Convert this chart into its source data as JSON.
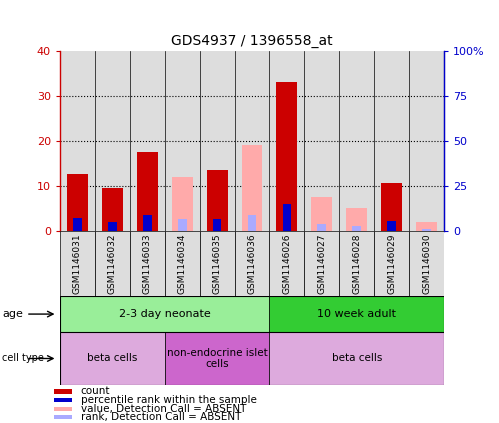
{
  "title": "GDS4937 / 1396558_at",
  "samples": [
    "GSM1146031",
    "GSM1146032",
    "GSM1146033",
    "GSM1146034",
    "GSM1146035",
    "GSM1146036",
    "GSM1146026",
    "GSM1146027",
    "GSM1146028",
    "GSM1146029",
    "GSM1146030"
  ],
  "count_values": [
    12.5,
    9.5,
    17.5,
    0,
    13.5,
    0,
    33.0,
    0,
    0,
    10.5,
    0
  ],
  "rank_values": [
    7.0,
    4.5,
    8.5,
    0,
    6.5,
    0,
    15.0,
    0,
    0,
    5.5,
    0
  ],
  "absent_value_values": [
    0,
    0,
    0,
    12.0,
    0,
    19.0,
    0,
    7.5,
    5.0,
    0,
    2.0
  ],
  "absent_rank_values": [
    0,
    0,
    0,
    6.5,
    0,
    8.5,
    0,
    3.5,
    2.5,
    0,
    0.8
  ],
  "count_color": "#cc0000",
  "rank_color": "#0000cc",
  "absent_value_color": "#ffaaaa",
  "absent_rank_color": "#aaaaff",
  "ylim_left": [
    0,
    40
  ],
  "ylim_right": [
    0,
    100
  ],
  "yticks_left": [
    0,
    10,
    20,
    30,
    40
  ],
  "yticks_right": [
    0,
    25,
    50,
    75,
    100
  ],
  "ytick_labels_left": [
    "0",
    "10",
    "20",
    "30",
    "40"
  ],
  "ytick_labels_right": [
    "0",
    "25",
    "50",
    "75",
    "100%"
  ],
  "age_groups": [
    {
      "label": "2-3 day neonate",
      "start": 0,
      "end": 6,
      "color": "#99ee99"
    },
    {
      "label": "10 week adult",
      "start": 6,
      "end": 11,
      "color": "#33cc33"
    }
  ],
  "cell_type_groups": [
    {
      "label": "beta cells",
      "start": 0,
      "end": 3,
      "color": "#ddaadd"
    },
    {
      "label": "non-endocrine islet\ncells",
      "start": 3,
      "end": 6,
      "color": "#cc66cc"
    },
    {
      "label": "beta cells",
      "start": 6,
      "end": 11,
      "color": "#ddaadd"
    }
  ],
  "legend_items": [
    {
      "label": "count",
      "color": "#cc0000"
    },
    {
      "label": "percentile rank within the sample",
      "color": "#0000cc"
    },
    {
      "label": "value, Detection Call = ABSENT",
      "color": "#ffaaaa"
    },
    {
      "label": "rank, Detection Call = ABSENT",
      "color": "#aaaaff"
    }
  ],
  "bar_width": 0.6,
  "rank_bar_width": 0.25,
  "background_color": "#ffffff",
  "col_bg_color": "#dddddd",
  "grid_color": "#000000",
  "tick_color_left": "#cc0000",
  "tick_color_right": "#0000cc"
}
